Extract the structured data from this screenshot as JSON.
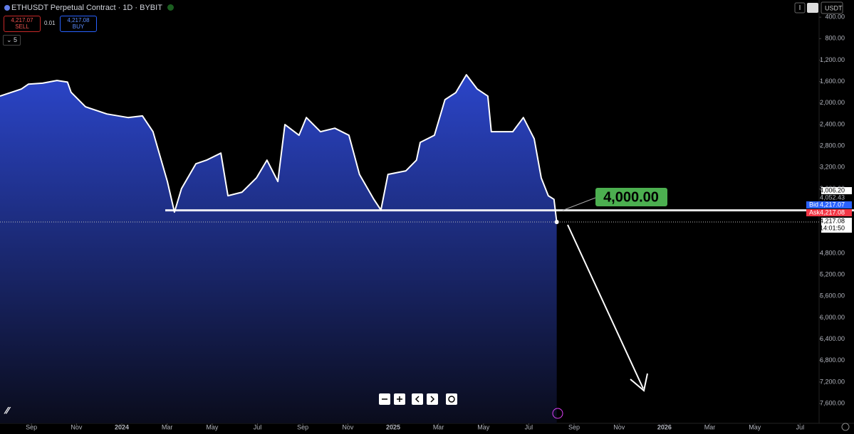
{
  "header": {
    "title": "ETHUSDT Perpetual Contract · 1D · BYBIT",
    "sell_price": "4,217.07",
    "sell_label": "SELL",
    "spread": "0.01",
    "buy_price": "4,217.08",
    "buy_label": "BUY",
    "indicators_count": "5",
    "currency": "USDT"
  },
  "chart_data": {
    "type": "area",
    "color": "#ffffff",
    "fill_top": "#2b45c9",
    "fill_bottom": "#0a0c1c",
    "inverted": true,
    "x": [
      2023.551,
      2023.63,
      2023.656,
      2023.708,
      2023.761,
      2023.8,
      2023.813,
      2023.866,
      2023.945,
      2024.023,
      2024.076,
      2024.115,
      2024.168,
      2024.194,
      2024.22,
      2024.273,
      2024.312,
      2024.365,
      2024.391,
      2024.443,
      2024.496,
      2024.535,
      2024.575,
      2024.601,
      2024.653,
      2024.68,
      2024.732,
      2024.785,
      2024.837,
      2024.876,
      2024.929,
      2024.955,
      2024.981,
      2025.047,
      2025.086,
      2025.1,
      2025.152,
      2025.191,
      2025.231,
      2025.27,
      2025.31,
      2025.349,
      2025.362,
      2025.441,
      2025.48,
      2025.52,
      2025.546,
      2025.572,
      2025.593,
      2025.603
    ],
    "values": [
      1872,
      1739,
      1647,
      1630,
      1580,
      1610,
      1800,
      2071,
      2204,
      2270,
      2240,
      2535,
      3463,
      4033,
      3596,
      3132,
      3065,
      2933,
      3728,
      3662,
      3397,
      3065,
      3463,
      2402,
      2601,
      2270,
      2535,
      2469,
      2601,
      3330,
      3795,
      3994,
      3330,
      3264,
      3065,
      2734,
      2601,
      1938,
      1806,
      1474,
      1739,
      1872,
      2535,
      2535,
      2270,
      2667,
      3397,
      3728,
      3795,
      4217.08
    ],
    "xlim": [
      2023.551,
      2026.57
    ],
    "ylim": [
      80,
      7970
    ],
    "xticks": [
      {
        "value": 2023.667,
        "label": "Sep"
      },
      {
        "value": 2023.833,
        "label": "Nov"
      },
      2024,
      {
        "value": 2024.167,
        "label": "Mar"
      },
      {
        "value": 2024.333,
        "label": "May"
      },
      {
        "value": 2024.5,
        "label": "Jul"
      },
      {
        "value": 2024.667,
        "label": "Sep"
      },
      {
        "value": 2024.833,
        "label": "Nov"
      },
      2025,
      {
        "value": 2025.167,
        "label": "Mar"
      },
      {
        "value": 2025.333,
        "label": "May"
      },
      {
        "value": 2025.5,
        "label": "Jul"
      },
      {
        "value": 2025.667,
        "label": "Sep"
      },
      {
        "value": 2025.833,
        "label": "Nov"
      },
      2026,
      {
        "value": 2026.167,
        "label": "Mar"
      },
      {
        "value": 2026.333,
        "label": "May"
      },
      {
        "value": 2026.5,
        "label": "Jul"
      }
    ],
    "yticks": [
      {
        "value": 400,
        "label": "400.00"
      },
      {
        "value": 800,
        "label": "800.00"
      },
      {
        "value": 1200,
        "label": "1,200.00"
      },
      {
        "value": 1600,
        "label": "1,600.00"
      },
      {
        "value": 2000,
        "label": "2,000.00"
      },
      {
        "value": 2400,
        "label": "2,400.00"
      },
      {
        "value": 2800,
        "label": "2,800.00"
      },
      {
        "value": 3200,
        "label": "3,200.00"
      },
      {
        "value": 3600,
        "label": "3,600.00"
      },
      {
        "value": 4800,
        "label": "4,800.00"
      },
      {
        "value": 5200,
        "label": "5,200.00"
      },
      {
        "value": 5600,
        "label": "5,600.00"
      },
      {
        "value": 6000,
        "label": "6,000.00"
      },
      {
        "value": 6400,
        "label": "6,400.00"
      },
      {
        "value": 6800,
        "label": "6,800.00"
      },
      {
        "value": 7200,
        "label": "7,200.00"
      },
      {
        "value": 7600,
        "label": "7,600.00"
      }
    ],
    "support": {
      "value": 4000,
      "label": "4,000.00",
      "color": "#ffffff",
      "label_color": "#4caf50"
    },
    "last_price": {
      "value": 4217.08,
      "label": "4,217.08",
      "time": "14:01:50"
    },
    "price_scale_labels": [
      {
        "text": "4,006.20"
      },
      {
        "text": "4,052.43"
      },
      {
        "tag": "Bid",
        "text": "4,217.07",
        "color": "#2962ff"
      },
      {
        "tag": "Ask",
        "text": "4,217.08",
        "color": "#f23645"
      }
    ]
  }
}
